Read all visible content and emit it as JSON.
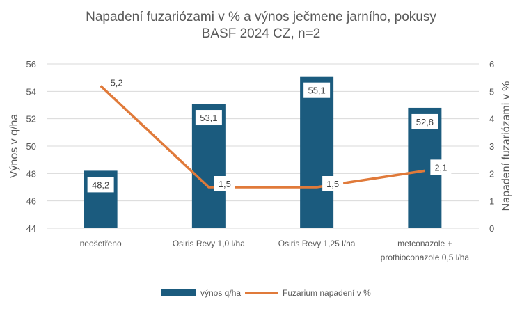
{
  "chart_data": {
    "type": "bar+line",
    "title_line1": "Napadení fuzariózami v % a výnos ječmene jarního, pokusy",
    "title_line2": "BASF 2024 CZ, n=2",
    "categories": [
      "neošetřeno",
      "Osiris Revy 1,0 l/ha",
      "Osiris Revy 1,25 l/ha",
      "metconazole + prothioconazole 0,5 l/ha"
    ],
    "category_lines": [
      [
        "neošetřeno"
      ],
      [
        "Osiris Revy 1,0 l/ha"
      ],
      [
        "Osiris Revy 1,25 l/ha"
      ],
      [
        "metconazole +",
        "prothioconazole 0,5 l/ha"
      ]
    ],
    "series": [
      {
        "name": "výnos q/ha",
        "type": "bar",
        "axis": "left",
        "color": "#1b5b7e",
        "values": [
          48.2,
          53.1,
          55.1,
          52.8
        ],
        "labels": [
          "48,2",
          "53,1",
          "55,1",
          "52,8"
        ]
      },
      {
        "name": "Fuzarium napadení v %",
        "type": "line",
        "axis": "right",
        "color": "#e07a3a",
        "values": [
          5.2,
          1.5,
          1.5,
          2.1
        ],
        "labels": [
          "5,2",
          "1,5",
          "1,5",
          "2,1"
        ]
      }
    ],
    "ylabel": "Výnos v q/ha",
    "y2label": "Napadení fuzariózami v %",
    "ylim": [
      44,
      56
    ],
    "yticks": [
      "44",
      "46",
      "48",
      "50",
      "52",
      "54",
      "56"
    ],
    "y2lim": [
      0,
      6
    ],
    "y2ticks": [
      "0",
      "1",
      "2",
      "3",
      "4",
      "5",
      "6"
    ],
    "grid": true,
    "legend": "bottom"
  }
}
